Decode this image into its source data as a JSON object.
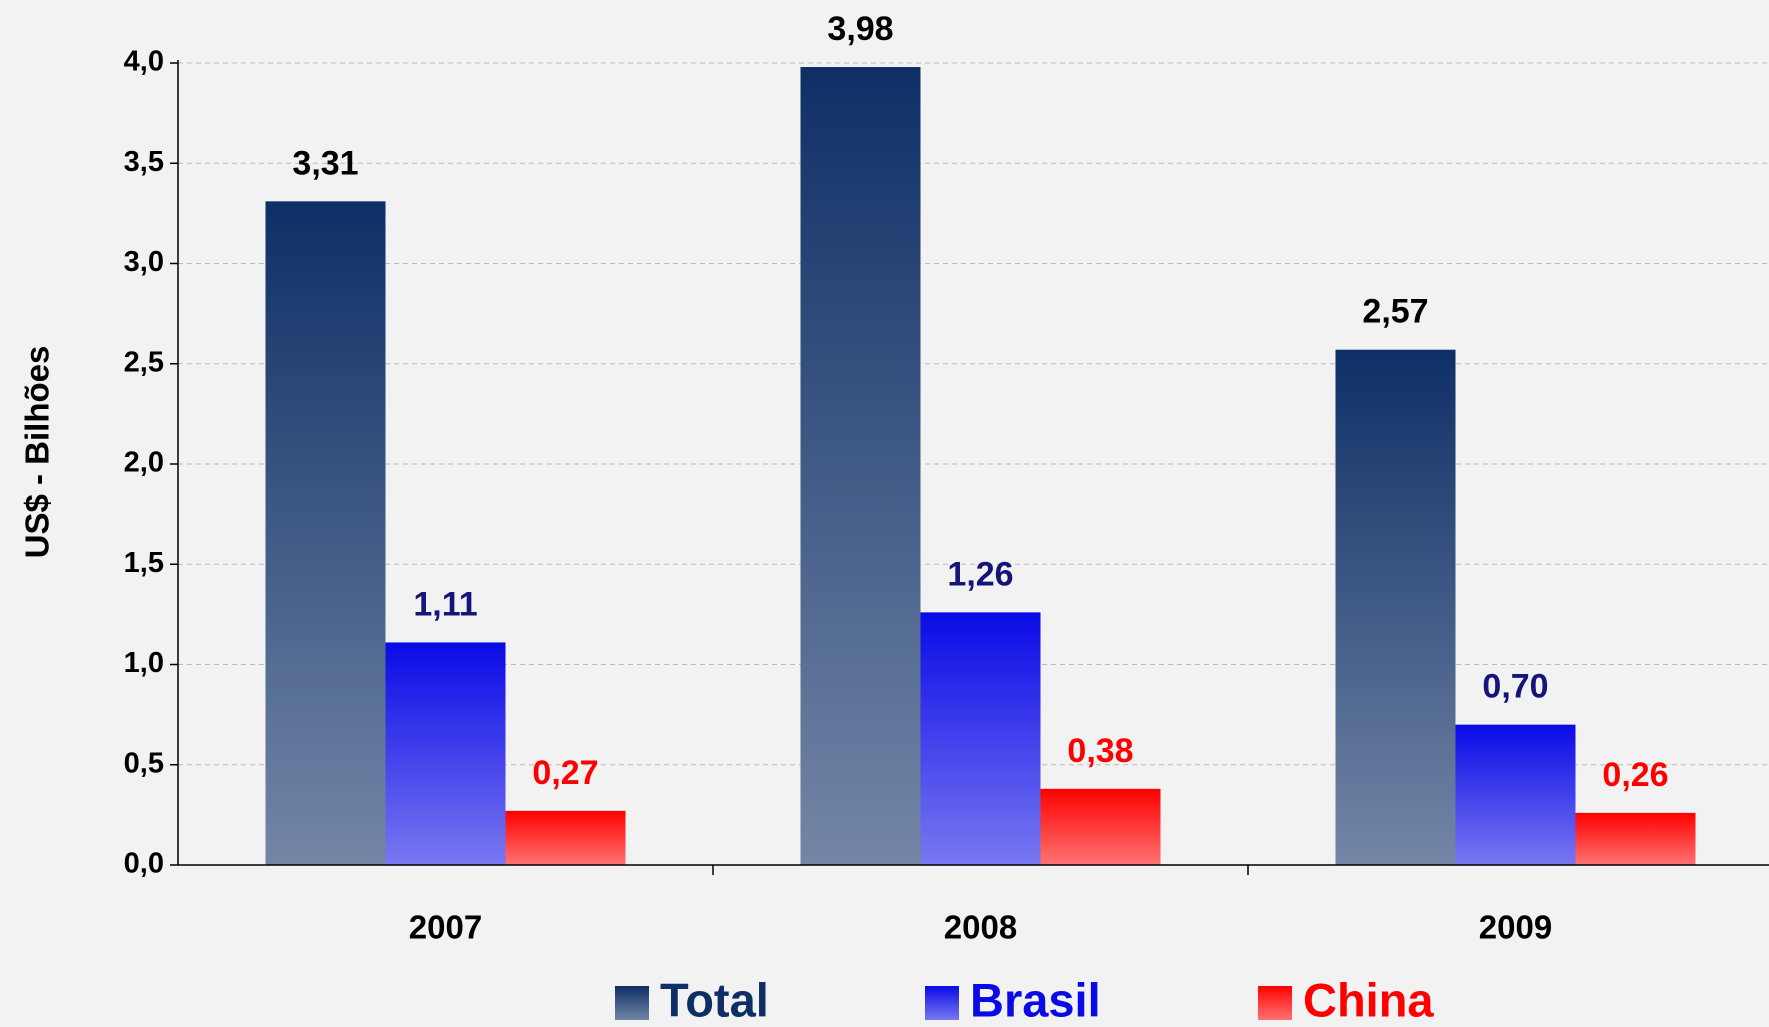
{
  "chart_data": {
    "type": "bar",
    "y_label": "US$ - Bilhões",
    "categories": [
      "2007",
      "2008",
      "2009"
    ],
    "series": [
      {
        "name": "Total",
        "color": "#0e2f66",
        "label_color": "#000000",
        "values": [
          3.31,
          3.98,
          2.57
        ],
        "value_labels": [
          "3,31",
          "3,98",
          "2,57"
        ]
      },
      {
        "name": "Brasil",
        "color": "#0a0ae6",
        "label_color": "#14147a",
        "values": [
          1.11,
          1.26,
          0.7
        ],
        "value_labels": [
          "1,11",
          "1,26",
          "0,70"
        ]
      },
      {
        "name": "China",
        "color": "#ff0000",
        "label_color": "#ff0000",
        "values": [
          0.27,
          0.38,
          0.26
        ],
        "value_labels": [
          "0,27",
          "0,38",
          "0,26"
        ]
      }
    ],
    "ylim": [
      0,
      4
    ],
    "yticks": [
      {
        "value": 0,
        "label": "0,0"
      },
      {
        "value": 0.5,
        "label": "0,5"
      },
      {
        "value": 1,
        "label": "1,0"
      },
      {
        "value": 1.5,
        "label": "1,5"
      },
      {
        "value": 2,
        "label": "2,0"
      },
      {
        "value": 2.5,
        "label": "2,5"
      },
      {
        "value": 3,
        "label": "3,0"
      },
      {
        "value": 3.5,
        "label": "3,5"
      },
      {
        "value": 4,
        "label": "4,0"
      }
    ],
    "grid": true,
    "legend": "bottom"
  }
}
